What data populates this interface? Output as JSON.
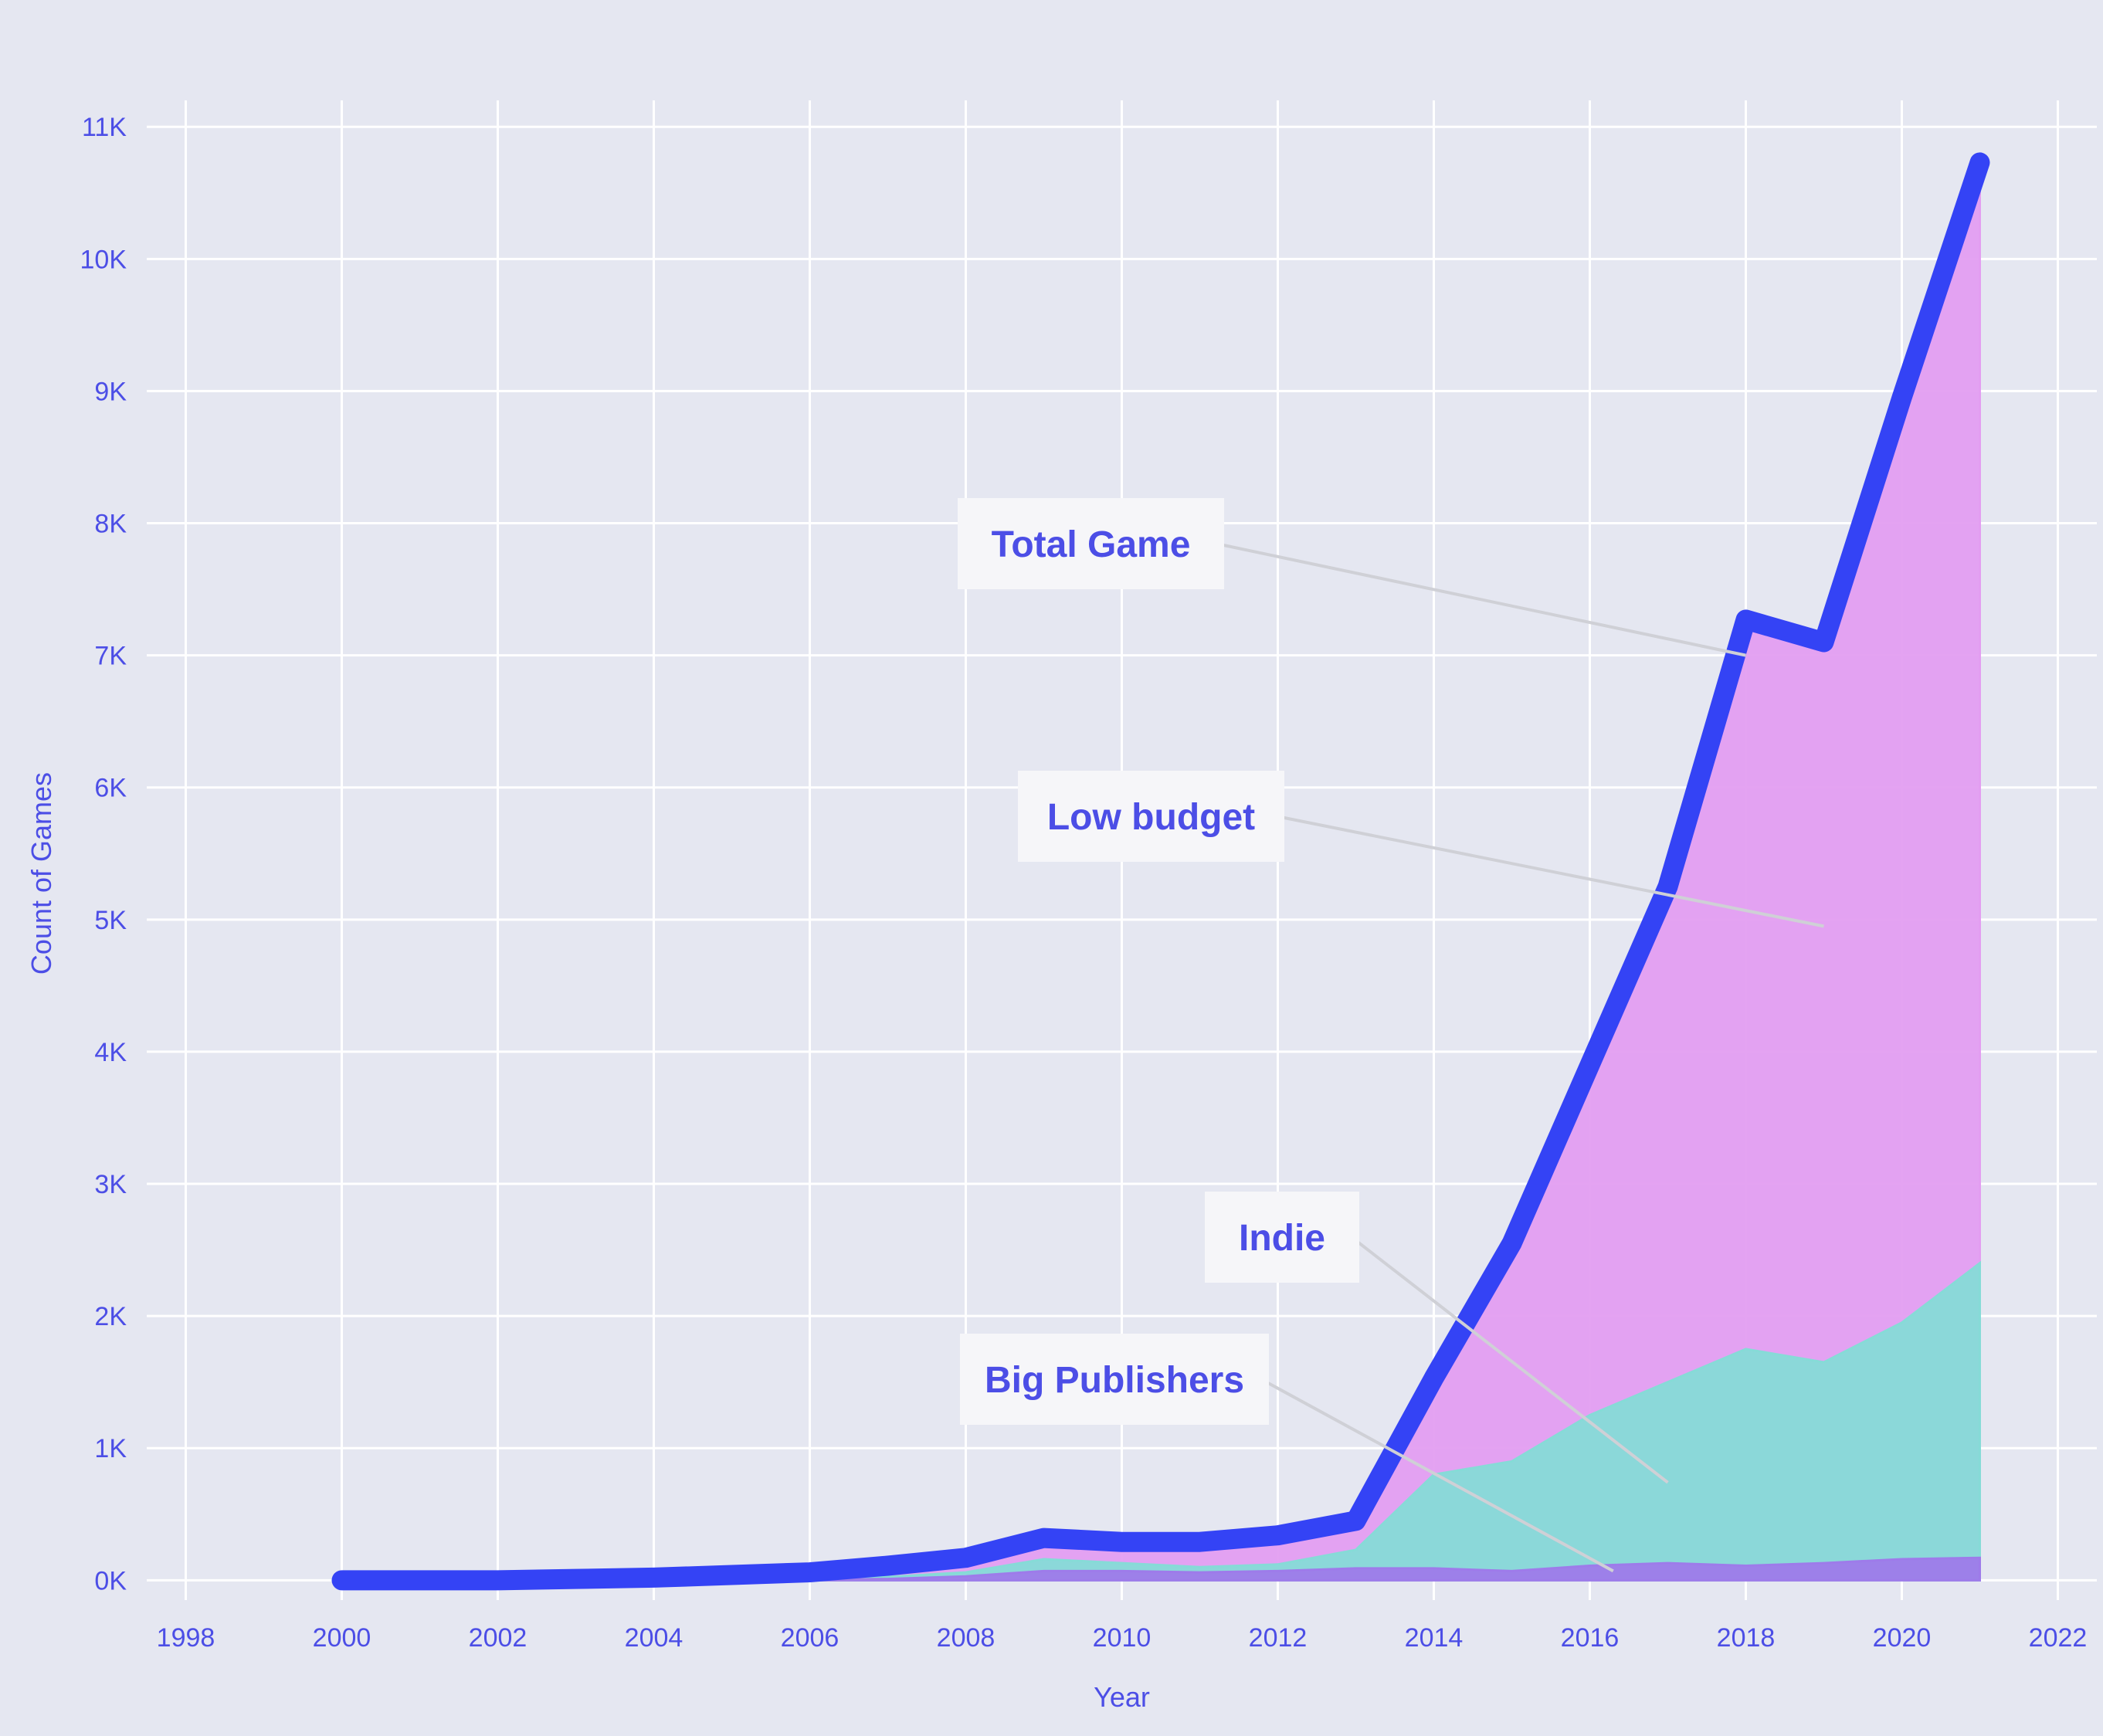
{
  "chart_data": {
    "type": "area",
    "title": "",
    "xlabel": "Year",
    "ylabel": "Count of Games",
    "xlim": [
      1997.5,
      2022.5
    ],
    "ylim": [
      -150,
      11200
    ],
    "x_ticks": [
      1998,
      2000,
      2002,
      2004,
      2006,
      2008,
      2010,
      2012,
      2014,
      2016,
      2018,
      2020,
      2022
    ],
    "y_ticks": [
      {
        "value": 0,
        "label": "0K"
      },
      {
        "value": 1000,
        "label": "1K"
      },
      {
        "value": 2000,
        "label": "2K"
      },
      {
        "value": 3000,
        "label": "3K"
      },
      {
        "value": 4000,
        "label": "4K"
      },
      {
        "value": 5000,
        "label": "5K"
      },
      {
        "value": 6000,
        "label": "6K"
      },
      {
        "value": 7000,
        "label": "7K"
      },
      {
        "value": 8000,
        "label": "8K"
      },
      {
        "value": 9000,
        "label": "9K"
      },
      {
        "value": 10000,
        "label": "10K"
      },
      {
        "value": 11000,
        "label": "11K"
      }
    ],
    "grid": true,
    "legend": "none",
    "x": [
      2000,
      2001,
      2002,
      2003,
      2004,
      2005,
      2006,
      2007,
      2008,
      2009,
      2010,
      2011,
      2012,
      2013,
      2014,
      2015,
      2016,
      2017,
      2018,
      2019,
      2020,
      2021
    ],
    "series": [
      {
        "name": "Big Publishers",
        "kind": "area",
        "color": "#9e7bea",
        "values": [
          0,
          0,
          0,
          0,
          0,
          2,
          5,
          10,
          30,
          70,
          70,
          60,
          70,
          90,
          90,
          70,
          110,
          130,
          110,
          130,
          160,
          170
        ]
      },
      {
        "name": "Indie",
        "kind": "area",
        "color": "#86dbd7",
        "values": [
          0,
          0,
          0,
          2,
          3,
          5,
          10,
          25,
          60,
          160,
          130,
          100,
          120,
          230,
          800,
          900,
          1250,
          1500,
          1750,
          1650,
          1950,
          2400
        ]
      },
      {
        "name": "Low budget",
        "kind": "area",
        "color": "#e39ef1",
        "values": [
          0,
          0,
          0,
          5,
          10,
          20,
          30,
          60,
          120,
          300,
          270,
          250,
          280,
          480,
          1550,
          2500,
          3850,
          5200,
          7200,
          7050,
          8850,
          10600
        ]
      },
      {
        "name": "Total Game",
        "kind": "line",
        "color": "#3443f5",
        "values": [
          0,
          0,
          0,
          10,
          20,
          40,
          60,
          110,
          170,
          320,
          290,
          290,
          340,
          450,
          1530,
          2550,
          3900,
          5250,
          7270,
          7100,
          8950,
          10730
        ]
      }
    ],
    "annotations": [
      {
        "text": "Total Game",
        "series": "Total Game",
        "point": [
          2018,
          7000
        ]
      },
      {
        "text": "Low budget",
        "series": "Low budget",
        "point": [
          2019,
          4950
        ]
      },
      {
        "text": "Indie",
        "series": "Indie",
        "point": [
          2017,
          740
        ]
      },
      {
        "text": "Big Publishers",
        "series": "Big Publishers",
        "point": [
          2016.3,
          70
        ]
      }
    ]
  }
}
